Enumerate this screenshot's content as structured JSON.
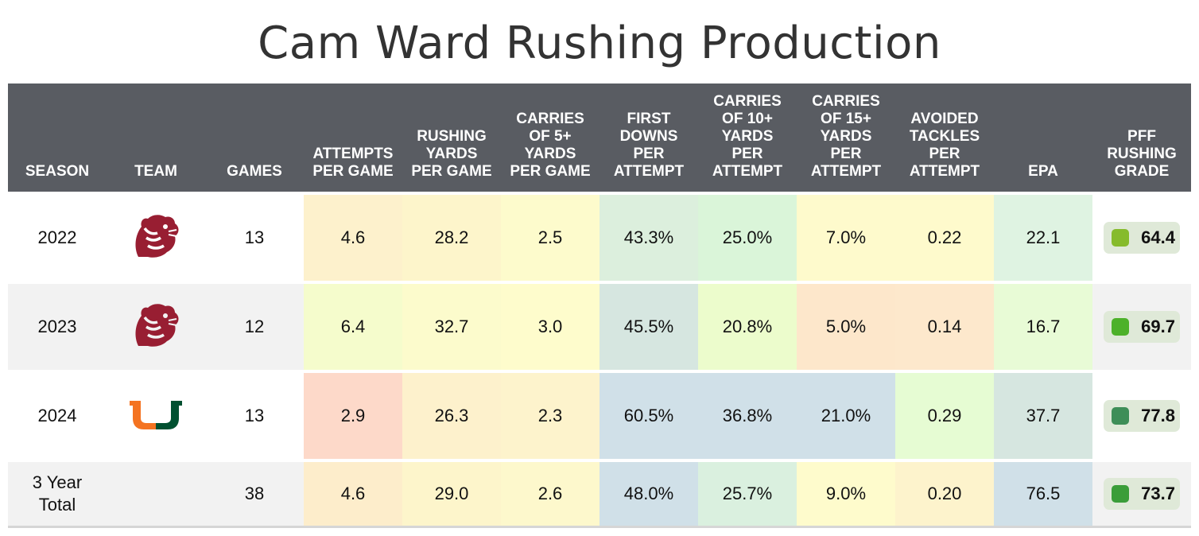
{
  "title": "Cam Ward Rushing Production",
  "columns": {
    "season": "SEASON",
    "team": "TEAM",
    "games": "GAMES",
    "att": [
      "ATTEMPTS",
      "PER GAME"
    ],
    "yds": [
      "RUSHING",
      "YARDS",
      "PER GAME"
    ],
    "c5": [
      "CARRIES",
      "OF 5+",
      "YARDS",
      "PER GAME"
    ],
    "fd": [
      "FIRST",
      "DOWNS",
      "PER",
      "ATTEMPT"
    ],
    "c10": [
      "CARRIES",
      "OF 10+",
      "YARDS",
      "PER",
      "ATTEMPT"
    ],
    "c15": [
      "CARRIES",
      "OF 15+",
      "YARDS",
      "PER",
      "ATTEMPT"
    ],
    "at": [
      "AVOIDED",
      "TACKLES",
      "PER",
      "ATTEMPT"
    ],
    "epa": "EPA",
    "grade": [
      "PFF",
      "RUSHING",
      "GRADE"
    ]
  },
  "rows": [
    {
      "season": "2022",
      "team_logo": "wsu-cougar-logo",
      "games": "13",
      "att": "4.6",
      "yds": "28.2",
      "c5": "2.5",
      "fd": "43.3%",
      "c10": "25.0%",
      "c15": "7.0%",
      "at": "0.22",
      "epa": "22.1",
      "grade": "64.4"
    },
    {
      "season": "2023",
      "team_logo": "wsu-cougar-logo",
      "games": "12",
      "att": "6.4",
      "yds": "32.7",
      "c5": "3.0",
      "fd": "45.5%",
      "c10": "20.8%",
      "c15": "5.0%",
      "at": "0.14",
      "epa": "16.7",
      "grade": "69.7"
    },
    {
      "season": "2024",
      "team_logo": "miami-u-logo",
      "games": "13",
      "att": "2.9",
      "yds": "26.3",
      "c5": "2.3",
      "fd": "60.5%",
      "c10": "36.8%",
      "c15": "21.0%",
      "at": "0.29",
      "epa": "37.7",
      "grade": "77.8"
    },
    {
      "season": "3 Year Total",
      "season_lines": [
        "3 Year",
        "Total"
      ],
      "games": "38",
      "att": "4.6",
      "yds": "29.0",
      "c5": "2.6",
      "fd": "48.0%",
      "c10": "25.7%",
      "c15": "9.0%",
      "at": "0.20",
      "epa": "76.5",
      "grade": "73.7"
    }
  ],
  "cell_colors": [
    {
      "att": "#fdf1cc",
      "yds": "#fdf5cb",
      "c5": "#fdfbcc",
      "fd": "#dcefdd",
      "c10": "#daf5d9",
      "c15": "#fefacc",
      "at": "#fefacc",
      "epa": "#dff3e2"
    },
    {
      "att": "#f5fccc",
      "yds": "#fcfbcc",
      "c5": "#fefccc",
      "fd": "#d6e6e0",
      "c10": "#ecfccc",
      "c15": "#fde7cb",
      "at": "#fde8cc",
      "epa": "#e8fbd6"
    },
    {
      "att": "#fdd9c9",
      "yds": "#fdf1cc",
      "c5": "#fdf3cc",
      "fd": "#d0e0e8",
      "c10": "#d0e0e8",
      "c15": "#d0e0e8",
      "at": "#e6fcd3",
      "epa": "#d6e6e0"
    },
    {
      "att": "#fdedcb",
      "yds": "#fdf5cb",
      "c5": "#fdf8cc",
      "fd": "#d0e0e8",
      "c10": "#daf0df",
      "c15": "#fefbcc",
      "at": "#fdf3cc",
      "epa": "#d0e0e8"
    }
  ],
  "grade_colors": [
    "#86bb2c",
    "#4db12a",
    "#3e8e58",
    "#3a9d39"
  ],
  "brand_colors": {
    "header_bg": "#595c62",
    "wsu_crimson": "#981e32",
    "miami_orange": "#f47321",
    "miami_green": "#005030"
  },
  "chart_data": {
    "type": "table",
    "title": "Cam Ward Rushing Production",
    "columns": [
      "SEASON",
      "TEAM",
      "GAMES",
      "ATTEMPTS PER GAME",
      "RUSHING YARDS PER GAME",
      "CARRIES OF 5+ YARDS PER GAME",
      "FIRST DOWNS PER ATTEMPT",
      "CARRIES OF 10+ YARDS PER ATTEMPT",
      "CARRIES OF 15+ YARDS PER ATTEMPT",
      "AVOIDED TACKLES PER ATTEMPT",
      "EPA",
      "PFF RUSHING GRADE"
    ],
    "rows": [
      [
        "2022",
        "Washington State",
        13,
        4.6,
        28.2,
        2.5,
        "43.3%",
        "25.0%",
        "7.0%",
        0.22,
        22.1,
        64.4
      ],
      [
        "2023",
        "Washington State",
        12,
        6.4,
        32.7,
        3.0,
        "45.5%",
        "20.8%",
        "5.0%",
        0.14,
        16.7,
        69.7
      ],
      [
        "2024",
        "Miami",
        13,
        2.9,
        26.3,
        2.3,
        "60.5%",
        "36.8%",
        "21.0%",
        0.29,
        37.7,
        77.8
      ],
      [
        "3 Year Total",
        "",
        38,
        4.6,
        29.0,
        2.6,
        "48.0%",
        "25.7%",
        "9.0%",
        0.2,
        76.5,
        73.7
      ]
    ]
  }
}
